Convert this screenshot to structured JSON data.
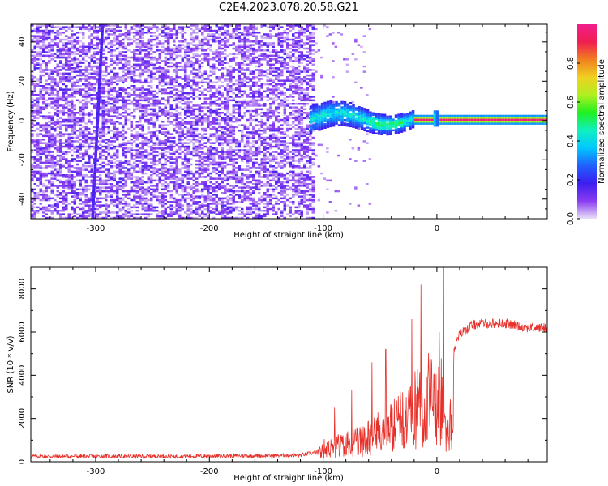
{
  "title": "C2E4.2023.078.20.58.G21",
  "colors": {
    "snr_line": "#e8302a",
    "frame": "#000000",
    "colorbar_stops": [
      "#e8e0f8",
      "#8a3cf0",
      "#3c1ef0",
      "#2060ff",
      "#00c8ff",
      "#10f0c0",
      "#20f020",
      "#b0f020",
      "#f0d020",
      "#f08020",
      "#f01e50",
      "#f01e8c"
    ]
  },
  "chart_data": [
    {
      "type": "heatmap",
      "title": "C2E4.2023.078.20.58.G21",
      "xlabel": "Height of straight line (km)",
      "ylabel": "Frequency (Hz)",
      "xlim": [
        -357,
        97
      ],
      "ylim": [
        -50,
        49
      ],
      "xticks": [
        -300,
        -200,
        -100,
        0
      ],
      "xtick_labels": [
        "-300",
        "-200",
        "-100",
        "0"
      ],
      "yticks": [
        -40,
        -20,
        0,
        20,
        40
      ],
      "ytick_labels": [
        "-40",
        "-20",
        "0",
        "20",
        "40"
      ],
      "grid": false,
      "colorbar": {
        "label": "Normalized spectral amplitude",
        "range": [
          0,
          1
        ],
        "ticks": [
          0.0,
          0.2,
          0.4,
          0.6,
          0.8
        ],
        "tick_labels": [
          "0.0",
          "0.2",
          "0.4",
          "0.6",
          "0.8"
        ]
      },
      "regions": [
        {
          "x_range": [
            -357,
            -110
          ],
          "frequency_range": [
            -50,
            49
          ],
          "amplitude": "0.0-0.2 noise (white/violet/blue speckle)"
        },
        {
          "x_range": [
            -110,
            -20
          ],
          "frequency_center": 0,
          "frequency_width": 12,
          "amplitude": "0.2-0.45 (blue/cyan/green band)"
        },
        {
          "x_range": [
            -20,
            97
          ],
          "frequency_center": 0,
          "frequency_width": 3,
          "amplitude": "~1.0 (red line with blue-green edges)"
        }
      ]
    },
    {
      "type": "line",
      "xlabel": "Height of straight line (km)",
      "ylabel": "SNR (10 * v/v)",
      "xlim": [
        -357,
        97
      ],
      "ylim": [
        0,
        9000
      ],
      "xticks": [
        -300,
        -200,
        -100,
        0
      ],
      "xtick_labels": [
        "-300",
        "-200",
        "-100",
        "0"
      ],
      "yticks": [
        0,
        2000,
        4000,
        6000,
        8000
      ],
      "ytick_labels": [
        "0",
        "2000",
        "4000",
        "6000",
        "8000"
      ],
      "grid": false,
      "series": [
        {
          "x": [
            -357,
            -330,
            -300,
            -270,
            -240,
            -210,
            -180,
            -150,
            -120,
            -105,
            -100,
            -95,
            -90,
            -85,
            -80,
            -75,
            -70,
            -65,
            -60,
            -55,
            -50,
            -45,
            -40,
            -35,
            -30,
            -25,
            -20,
            -15,
            -12,
            -10,
            -7,
            -5,
            -3,
            0,
            3,
            6,
            8,
            10,
            12,
            15,
            20,
            25,
            30,
            40,
            50,
            60,
            70,
            80,
            90,
            97
          ],
          "y": [
            250,
            250,
            250,
            250,
            250,
            260,
            270,
            280,
            300,
            450,
            900,
            1000,
            1100,
            1150,
            1200,
            1300,
            1400,
            1500,
            1700,
            1900,
            2100,
            2300,
            2500,
            2700,
            2900,
            3200,
            3600,
            4000,
            4200,
            4300,
            4500,
            4700,
            4800,
            4700,
            4500,
            3500,
            2600,
            1800,
            3000,
            5200,
            5900,
            6100,
            6300,
            6400,
            6400,
            6400,
            6300,
            6200,
            6200,
            6200
          ],
          "spikes": [
            {
              "x": -90,
              "y": 2500
            },
            {
              "x": -75,
              "y": 3300
            },
            {
              "x": -57,
              "y": 4600
            },
            {
              "x": -45,
              "y": 5200
            },
            {
              "x": -22,
              "y": 6600
            },
            {
              "x": -14,
              "y": 8200
            },
            {
              "x": 2,
              "y": 6000
            },
            {
              "x": 6,
              "y": 9100
            }
          ]
        }
      ]
    }
  ]
}
